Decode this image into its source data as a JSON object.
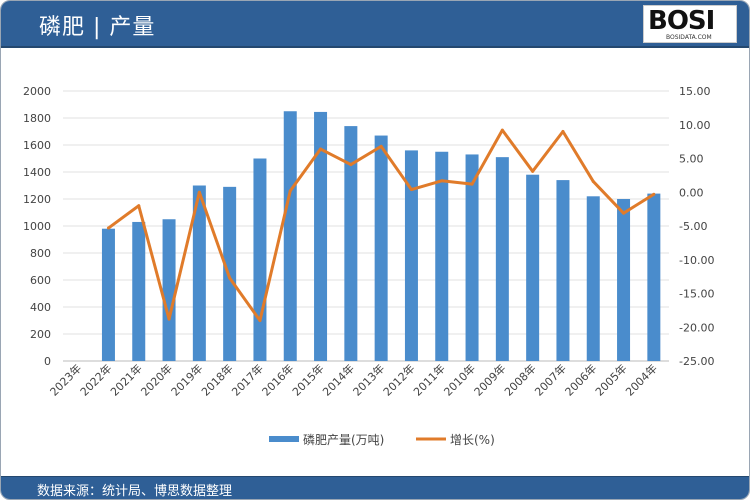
{
  "header": {
    "title": "磷肥 | 产量",
    "logo_text": "BOSI",
    "logo_sub": "BOSIDATA.COM"
  },
  "footer": {
    "source": "数据来源：统计局、博思数据整理"
  },
  "chart_data": {
    "type": "bar+line",
    "categories": [
      "2023年",
      "2022年",
      "2021年",
      "2020年",
      "2019年",
      "2018年",
      "2017年",
      "2016年",
      "2015年",
      "2014年",
      "2013年",
      "2012年",
      "2011年",
      "2010年",
      "2009年",
      "2008年",
      "2007年",
      "2006年",
      "2005年",
      "2004年"
    ],
    "series": [
      {
        "name": "磷肥产量(万吨)",
        "type": "bar",
        "axis": "left",
        "color": "#4a8ccc",
        "values": [
          null,
          980,
          1030,
          1050,
          1300,
          1290,
          1500,
          1850,
          1845,
          1740,
          1670,
          1560,
          1550,
          1530,
          1510,
          1380,
          1340,
          1220,
          1200,
          1240
        ]
      },
      {
        "name": "增长(%)",
        "type": "line",
        "axis": "right",
        "color": "#e07b2a",
        "values": [
          null,
          -5.3,
          -2.0,
          -18.8,
          0.0,
          -12.7,
          -19.0,
          0.2,
          6.4,
          4.1,
          6.8,
          0.4,
          1.7,
          1.2,
          9.2,
          3.1,
          9.0,
          1.6,
          -3.1,
          -0.3
        ]
      }
    ],
    "y_left": {
      "min": 0,
      "max": 2000,
      "step": 200,
      "ticks": [
        "0",
        "200",
        "400",
        "600",
        "800",
        "1000",
        "1200",
        "1400",
        "1600",
        "1800",
        "2000"
      ]
    },
    "y_right": {
      "min": -25,
      "max": 15,
      "step": 5,
      "ticks": [
        "-25.00",
        "-20.00",
        "-15.00",
        "-10.00",
        "-5.00",
        "0.00",
        "5.00",
        "10.00",
        "15.00"
      ]
    },
    "grid": true,
    "legend": "bottom"
  }
}
